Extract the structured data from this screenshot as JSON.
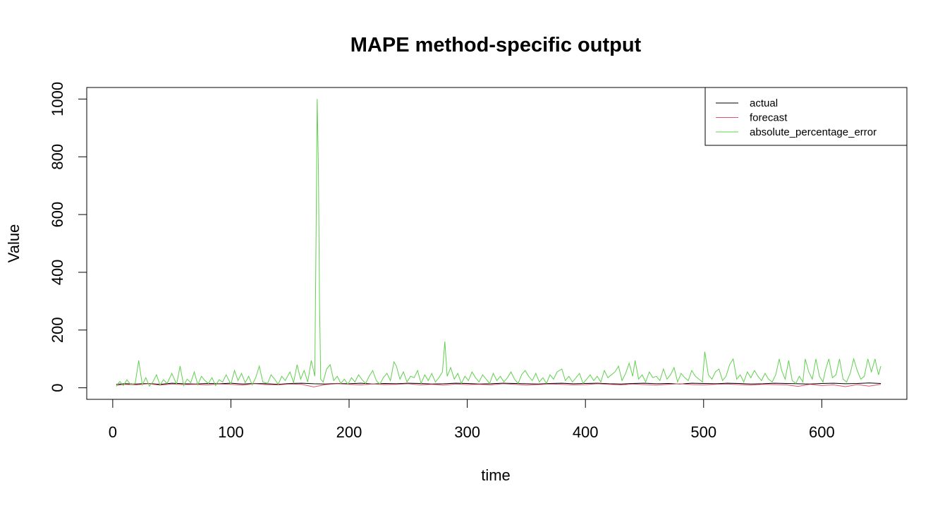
{
  "chart_data": {
    "type": "line",
    "title": "MAPE method-specific output",
    "xlabel": "time",
    "ylabel": "Value",
    "xlim": [
      -22,
      672
    ],
    "ylim": [
      -40,
      1040
    ],
    "x_ticks": [
      0,
      100,
      200,
      300,
      400,
      500,
      600
    ],
    "y_ticks": [
      0,
      200,
      400,
      600,
      800,
      1000
    ],
    "grid": false,
    "legend": {
      "position": "top-right",
      "entries": [
        {
          "label": "actual",
          "color": "#000000"
        },
        {
          "label": "forecast",
          "color": "#DF536B"
        },
        {
          "label": "absolute_percentage_error",
          "color": "#61D04F"
        }
      ]
    },
    "series": [
      {
        "name": "actual",
        "color": "#000000",
        "x": [
          3,
          10,
          20,
          30,
          40,
          50,
          60,
          70,
          80,
          90,
          100,
          110,
          120,
          130,
          140,
          150,
          160,
          170,
          180,
          190,
          200,
          210,
          220,
          230,
          240,
          250,
          260,
          270,
          280,
          290,
          300,
          310,
          320,
          330,
          340,
          350,
          360,
          370,
          380,
          390,
          400,
          410,
          420,
          430,
          440,
          450,
          460,
          470,
          480,
          490,
          500,
          510,
          520,
          530,
          540,
          550,
          560,
          570,
          580,
          590,
          600,
          610,
          620,
          630,
          640,
          650
        ],
        "values": [
          12,
          14,
          13,
          15,
          12,
          16,
          14,
          13,
          15,
          14,
          16,
          13,
          15,
          14,
          12,
          15,
          16,
          14,
          13,
          15,
          14,
          16,
          13,
          15,
          14,
          16,
          15,
          13,
          14,
          16,
          15,
          13,
          14,
          16,
          15,
          14,
          13,
          15,
          16,
          14,
          15,
          16,
          14,
          13,
          15,
          16,
          14,
          15,
          13,
          16,
          15,
          14,
          16,
          15,
          13,
          14,
          16,
          15,
          14,
          13,
          15,
          16,
          14,
          15,
          17,
          15
        ]
      },
      {
        "name": "forecast",
        "color": "#DF536B",
        "x": [
          3,
          10,
          20,
          30,
          40,
          50,
          60,
          70,
          80,
          90,
          100,
          110,
          120,
          130,
          140,
          150,
          160,
          170,
          180,
          190,
          200,
          210,
          220,
          230,
          240,
          250,
          260,
          270,
          280,
          290,
          300,
          310,
          320,
          330,
          340,
          350,
          360,
          370,
          380,
          390,
          400,
          410,
          420,
          430,
          440,
          450,
          460,
          470,
          480,
          490,
          500,
          510,
          520,
          530,
          540,
          550,
          560,
          570,
          580,
          590,
          600,
          610,
          620,
          630,
          640,
          650
        ],
        "values": [
          8,
          12,
          10,
          14,
          9,
          13,
          11,
          12,
          10,
          13,
          12,
          9,
          14,
          11,
          10,
          13,
          12,
          3,
          11,
          14,
          12,
          10,
          13,
          11,
          12,
          14,
          10,
          12,
          9,
          13,
          11,
          12,
          10,
          14,
          12,
          9,
          11,
          13,
          12,
          10,
          11,
          14,
          12,
          10,
          13,
          11,
          9,
          12,
          14,
          11,
          10,
          12,
          13,
          11,
          9,
          12,
          11,
          10,
          5,
          12,
          8,
          10,
          4,
          11,
          6,
          12
        ]
      },
      {
        "name": "absolute_percentage_error",
        "color": "#61D04F",
        "x": [
          3,
          6,
          9,
          12,
          15,
          19,
          22,
          25,
          28,
          31,
          34,
          37,
          40,
          43,
          46,
          50,
          54,
          57,
          60,
          63,
          66,
          69,
          72,
          75,
          78,
          81,
          84,
          87,
          90,
          93,
          96,
          100,
          103,
          106,
          109,
          112,
          115,
          118,
          121,
          124,
          127,
          131,
          134,
          137,
          140,
          143,
          146,
          150,
          153,
          156,
          159,
          162,
          165,
          168,
          171,
          172,
          173,
          174,
          175,
          176,
          178,
          181,
          184,
          187,
          190,
          193,
          196,
          199,
          202,
          205,
          208,
          211,
          214,
          217,
          220,
          223,
          226,
          229,
          232,
          235,
          238,
          240,
          243,
          246,
          249,
          252,
          255,
          258,
          261,
          264,
          267,
          270,
          273,
          276,
          279,
          281,
          283,
          286,
          289,
          292,
          295,
          298,
          301,
          304,
          307,
          310,
          313,
          316,
          319,
          322,
          325,
          328,
          331,
          334,
          337,
          340,
          343,
          346,
          349,
          352,
          355,
          358,
          361,
          364,
          367,
          370,
          373,
          376,
          380,
          383,
          386,
          389,
          392,
          395,
          398,
          401,
          404,
          407,
          410,
          413,
          416,
          419,
          422,
          425,
          428,
          431,
          434,
          437,
          440,
          442,
          445,
          448,
          451,
          454,
          457,
          460,
          463,
          466,
          469,
          472,
          475,
          478,
          481,
          484,
          487,
          490,
          493,
          496,
          499,
          501,
          504,
          507,
          510,
          513,
          516,
          519,
          522,
          525,
          528,
          531,
          534,
          537,
          540,
          543,
          546,
          549,
          552,
          555,
          558,
          561,
          564,
          566,
          569,
          572,
          575,
          578,
          581,
          584,
          586,
          589,
          592,
          595,
          598,
          601,
          603,
          606,
          609,
          612,
          615,
          618,
          621,
          624,
          627,
          630,
          633,
          636,
          639,
          642,
          645,
          648,
          650
        ],
        "values": [
          5,
          22,
          8,
          28,
          12,
          15,
          95,
          10,
          35,
          6,
          20,
          45,
          9,
          28,
          15,
          50,
          12,
          75,
          8,
          30,
          18,
          55,
          10,
          40,
          25,
          15,
          35,
          8,
          28,
          20,
          45,
          12,
          60,
          25,
          50,
          18,
          40,
          10,
          35,
          75,
          20,
          15,
          45,
          30,
          12,
          40,
          25,
          55,
          18,
          80,
          30,
          60,
          20,
          95,
          40,
          500,
          1000,
          770,
          300,
          30,
          20,
          65,
          80,
          25,
          40,
          15,
          30,
          12,
          35,
          20,
          45,
          28,
          15,
          40,
          60,
          25,
          12,
          35,
          50,
          25,
          90,
          75,
          30,
          55,
          20,
          40,
          35,
          60,
          15,
          45,
          25,
          50,
          20,
          35,
          55,
          160,
          40,
          70,
          30,
          50,
          15,
          40,
          25,
          55,
          35,
          20,
          45,
          30,
          15,
          50,
          25,
          40,
          20,
          35,
          55,
          30,
          15,
          45,
          60,
          40,
          25,
          50,
          20,
          35,
          15,
          45,
          30,
          55,
          65,
          25,
          40,
          20,
          35,
          50,
          15,
          30,
          45,
          25,
          40,
          20,
          60,
          35,
          45,
          55,
          75,
          25,
          50,
          85,
          40,
          95,
          30,
          45,
          20,
          55,
          35,
          40,
          25,
          65,
          30,
          45,
          70,
          20,
          50,
          35,
          25,
          60,
          40,
          30,
          20,
          125,
          45,
          30,
          55,
          65,
          25,
          40,
          80,
          100,
          30,
          45,
          20,
          55,
          35,
          60,
          40,
          25,
          50,
          30,
          20,
          45,
          100,
          60,
          30,
          95,
          25,
          15,
          40,
          20,
          100,
          55,
          30,
          100,
          40,
          20,
          60,
          100,
          35,
          45,
          100,
          30,
          20,
          50,
          100,
          60,
          30,
          40,
          100,
          55,
          100,
          45,
          75
        ]
      }
    ]
  }
}
